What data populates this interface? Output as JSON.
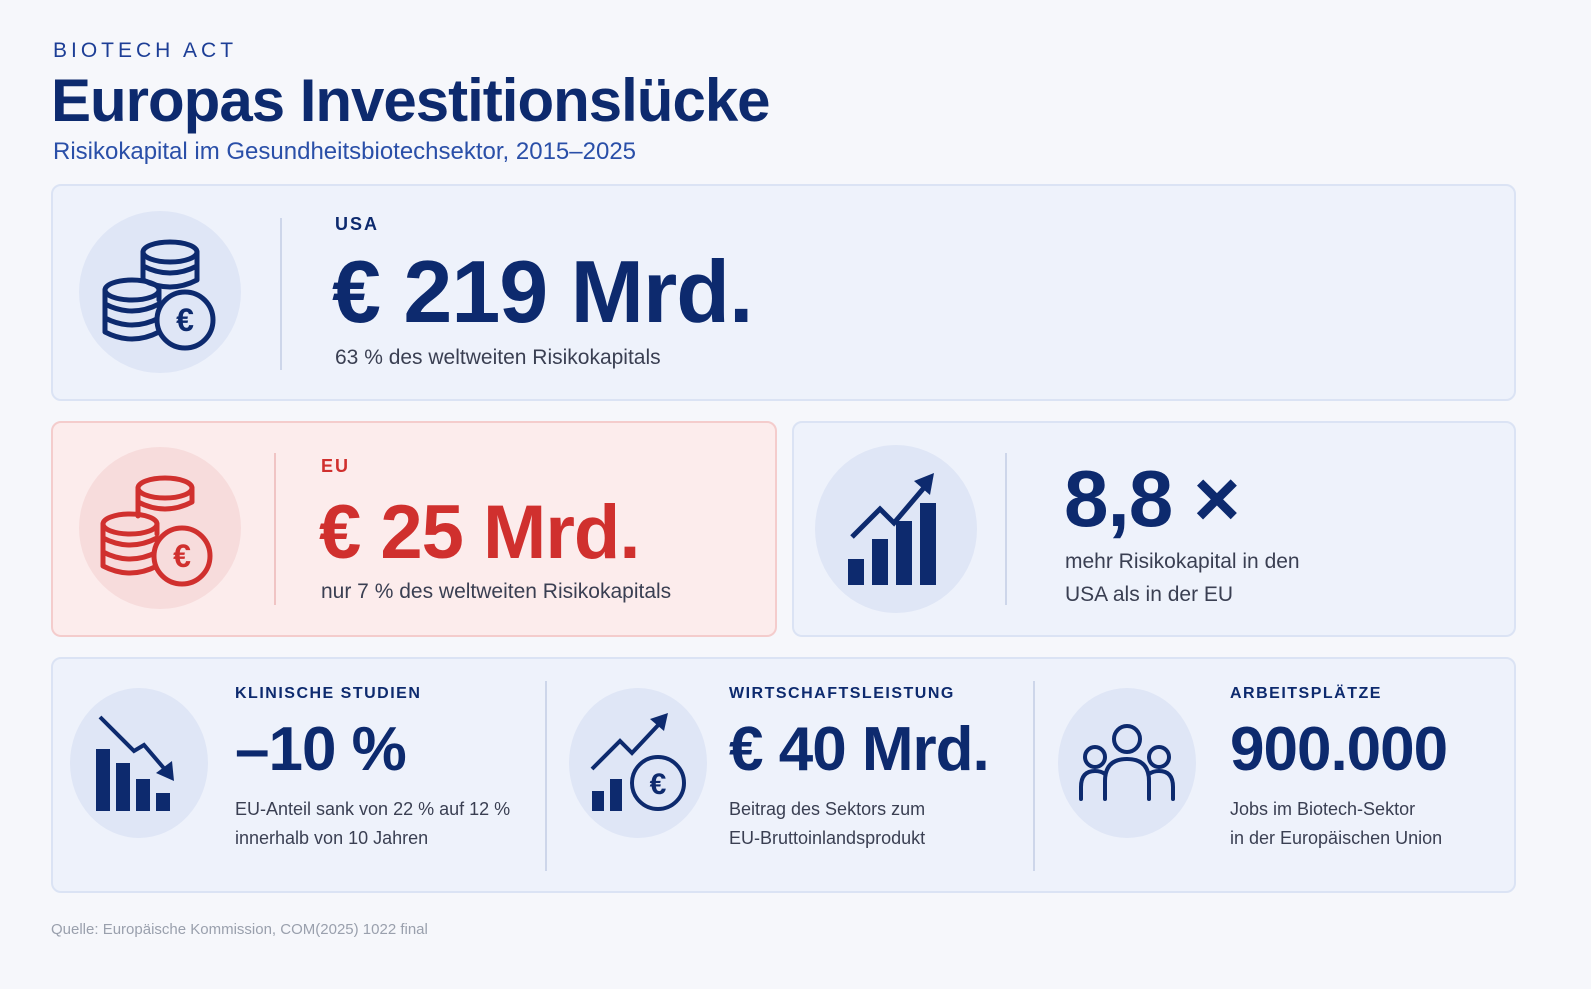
{
  "header": {
    "kicker": "BIOTECH ACT",
    "title": "Europas Investitionslücke",
    "subtitle": "Risikokapital im Gesundheitsbiotechsektor, 2015–2025"
  },
  "usa": {
    "label": "USA",
    "value": "€ 219 Mrd.",
    "description": "63 % des weltweiten Risikokapitals",
    "icon": "coins-euro-icon"
  },
  "eu": {
    "label": "EU",
    "value": "€ 25 Mrd.",
    "description": "nur 7 % des weltweiten Risikokapitals",
    "icon": "coins-euro-icon",
    "accent_color": "#d0302e"
  },
  "ratio": {
    "value": "8,8 ×",
    "description_line1": "mehr Risikokapital in den",
    "description_line2": "USA als in der EU",
    "icon": "rising-bar-chart-icon"
  },
  "stats": [
    {
      "label": "KLINISCHE STUDIEN",
      "value": "–10 %",
      "line1": "EU-Anteil sank von 22 % auf 12 %",
      "line2": "innerhalb von 10 Jahren",
      "icon": "falling-bar-chart-icon"
    },
    {
      "label": "WIRTSCHAFTSLEISTUNG",
      "value": "€ 40 Mrd.",
      "line1": "Beitrag des Sektors zum",
      "line2": "EU-Bruttoinlandsprodukt",
      "icon": "growth-euro-icon"
    },
    {
      "label": "ARBEITSPLÄTZE",
      "value": "900.000",
      "line1": "Jobs im Biotech-Sektor",
      "line2": "in der Europäischen Union",
      "icon": "people-group-icon"
    }
  ],
  "source": "Quelle: Europäische Kommission, COM(2025) 1022 final",
  "colors": {
    "primary": "#0d2a6e",
    "accent_red": "#d0302e",
    "card_bg": "#eef2fb"
  }
}
